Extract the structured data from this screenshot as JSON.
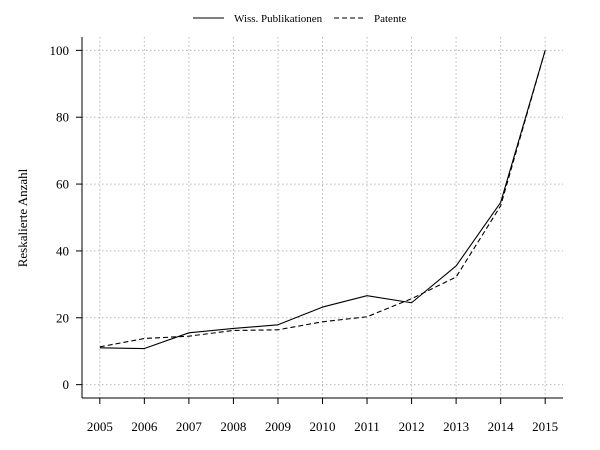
{
  "chart_data": {
    "type": "line",
    "title": "",
    "xlabel": "",
    "ylabel": "Reskalierte Anzahl",
    "x": [
      2005,
      2006,
      2007,
      2008,
      2009,
      2010,
      2011,
      2012,
      2013,
      2014,
      2015
    ],
    "xticks": [
      "2005",
      "2006",
      "2007",
      "2008",
      "2009",
      "2010",
      "2011",
      "2012",
      "2013",
      "2014",
      "2015"
    ],
    "yticks": [
      "0",
      "20",
      "40",
      "60",
      "80",
      "100"
    ],
    "ylim": [
      -4,
      104
    ],
    "xlim": [
      2004.6,
      2015.4
    ],
    "grid": true,
    "legend_position": "top",
    "series": [
      {
        "name": "Wiss. Publikationen",
        "line_style": "solid",
        "values": [
          11,
          10.8,
          15.5,
          16.8,
          17.9,
          23.2,
          26.6,
          24.5,
          35.5,
          54.5,
          100
        ]
      },
      {
        "name": "Patente",
        "line_style": "dashed",
        "values": [
          11.3,
          13.8,
          14.5,
          16.2,
          16.4,
          18.8,
          20.3,
          25.7,
          32.2,
          53.5,
          100
        ]
      }
    ],
    "colors": {
      "line": "#000000",
      "grid": "#b8b8b8"
    }
  }
}
